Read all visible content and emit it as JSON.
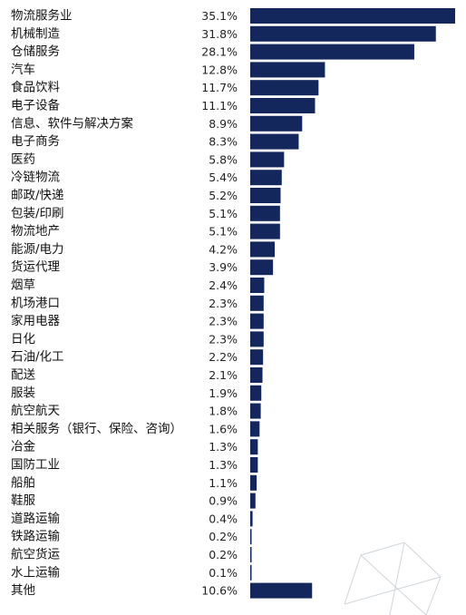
{
  "chart_data": {
    "type": "bar",
    "orientation": "horizontal",
    "bar_color": "#13275c",
    "value_unit": "%",
    "categories": [
      "物流服务业",
      "机械制造",
      "仓储服务",
      "汽车",
      "食品饮料",
      "电子设备",
      "信息、软件与解决方案",
      "电子商务",
      "医药",
      "冷链物流",
      "邮政/快递",
      "包装/印刷",
      "物流地产",
      "能源/电力",
      "货运代理",
      "烟草",
      "机场港口",
      "家用电器",
      "日化",
      "石油/化工",
      "配送",
      "服装",
      "航空航天",
      "相关服务（银行、保险、咨询）",
      "冶金",
      "国防工业",
      "船舶",
      "鞋服",
      "道路运输",
      "铁路运输",
      "航空货运",
      "水上运输",
      "其他"
    ],
    "values": [
      35.1,
      31.8,
      28.1,
      12.8,
      11.7,
      11.1,
      8.9,
      8.3,
      5.8,
      5.4,
      5.2,
      5.1,
      5.1,
      4.2,
      3.9,
      2.4,
      2.3,
      2.3,
      2.3,
      2.2,
      2.1,
      1.9,
      1.8,
      1.6,
      1.3,
      1.3,
      1.1,
      0.9,
      0.4,
      0.2,
      0.2,
      0.1,
      10.6
    ],
    "value_labels": [
      "35.1%",
      "31.8%",
      "28.1%",
      "12.8%",
      "11.7%",
      "11.1%",
      "8.9%",
      "8.3%",
      "5.8%",
      "5.4%",
      "5.2%",
      "5.1%",
      "5.1%",
      "4.2%",
      "3.9%",
      "2.4%",
      "2.3%",
      "2.3%",
      "2.3%",
      "2.2%",
      "2.1%",
      "1.9%",
      "1.8%",
      "1.6%",
      "1.3%",
      "1.3%",
      "1.1%",
      "0.9%",
      "0.4%",
      "0.2%",
      "0.2%",
      "0.1%",
      "10.6%"
    ],
    "xlim": [
      0,
      35.1
    ],
    "grid": false,
    "legend": "none"
  }
}
